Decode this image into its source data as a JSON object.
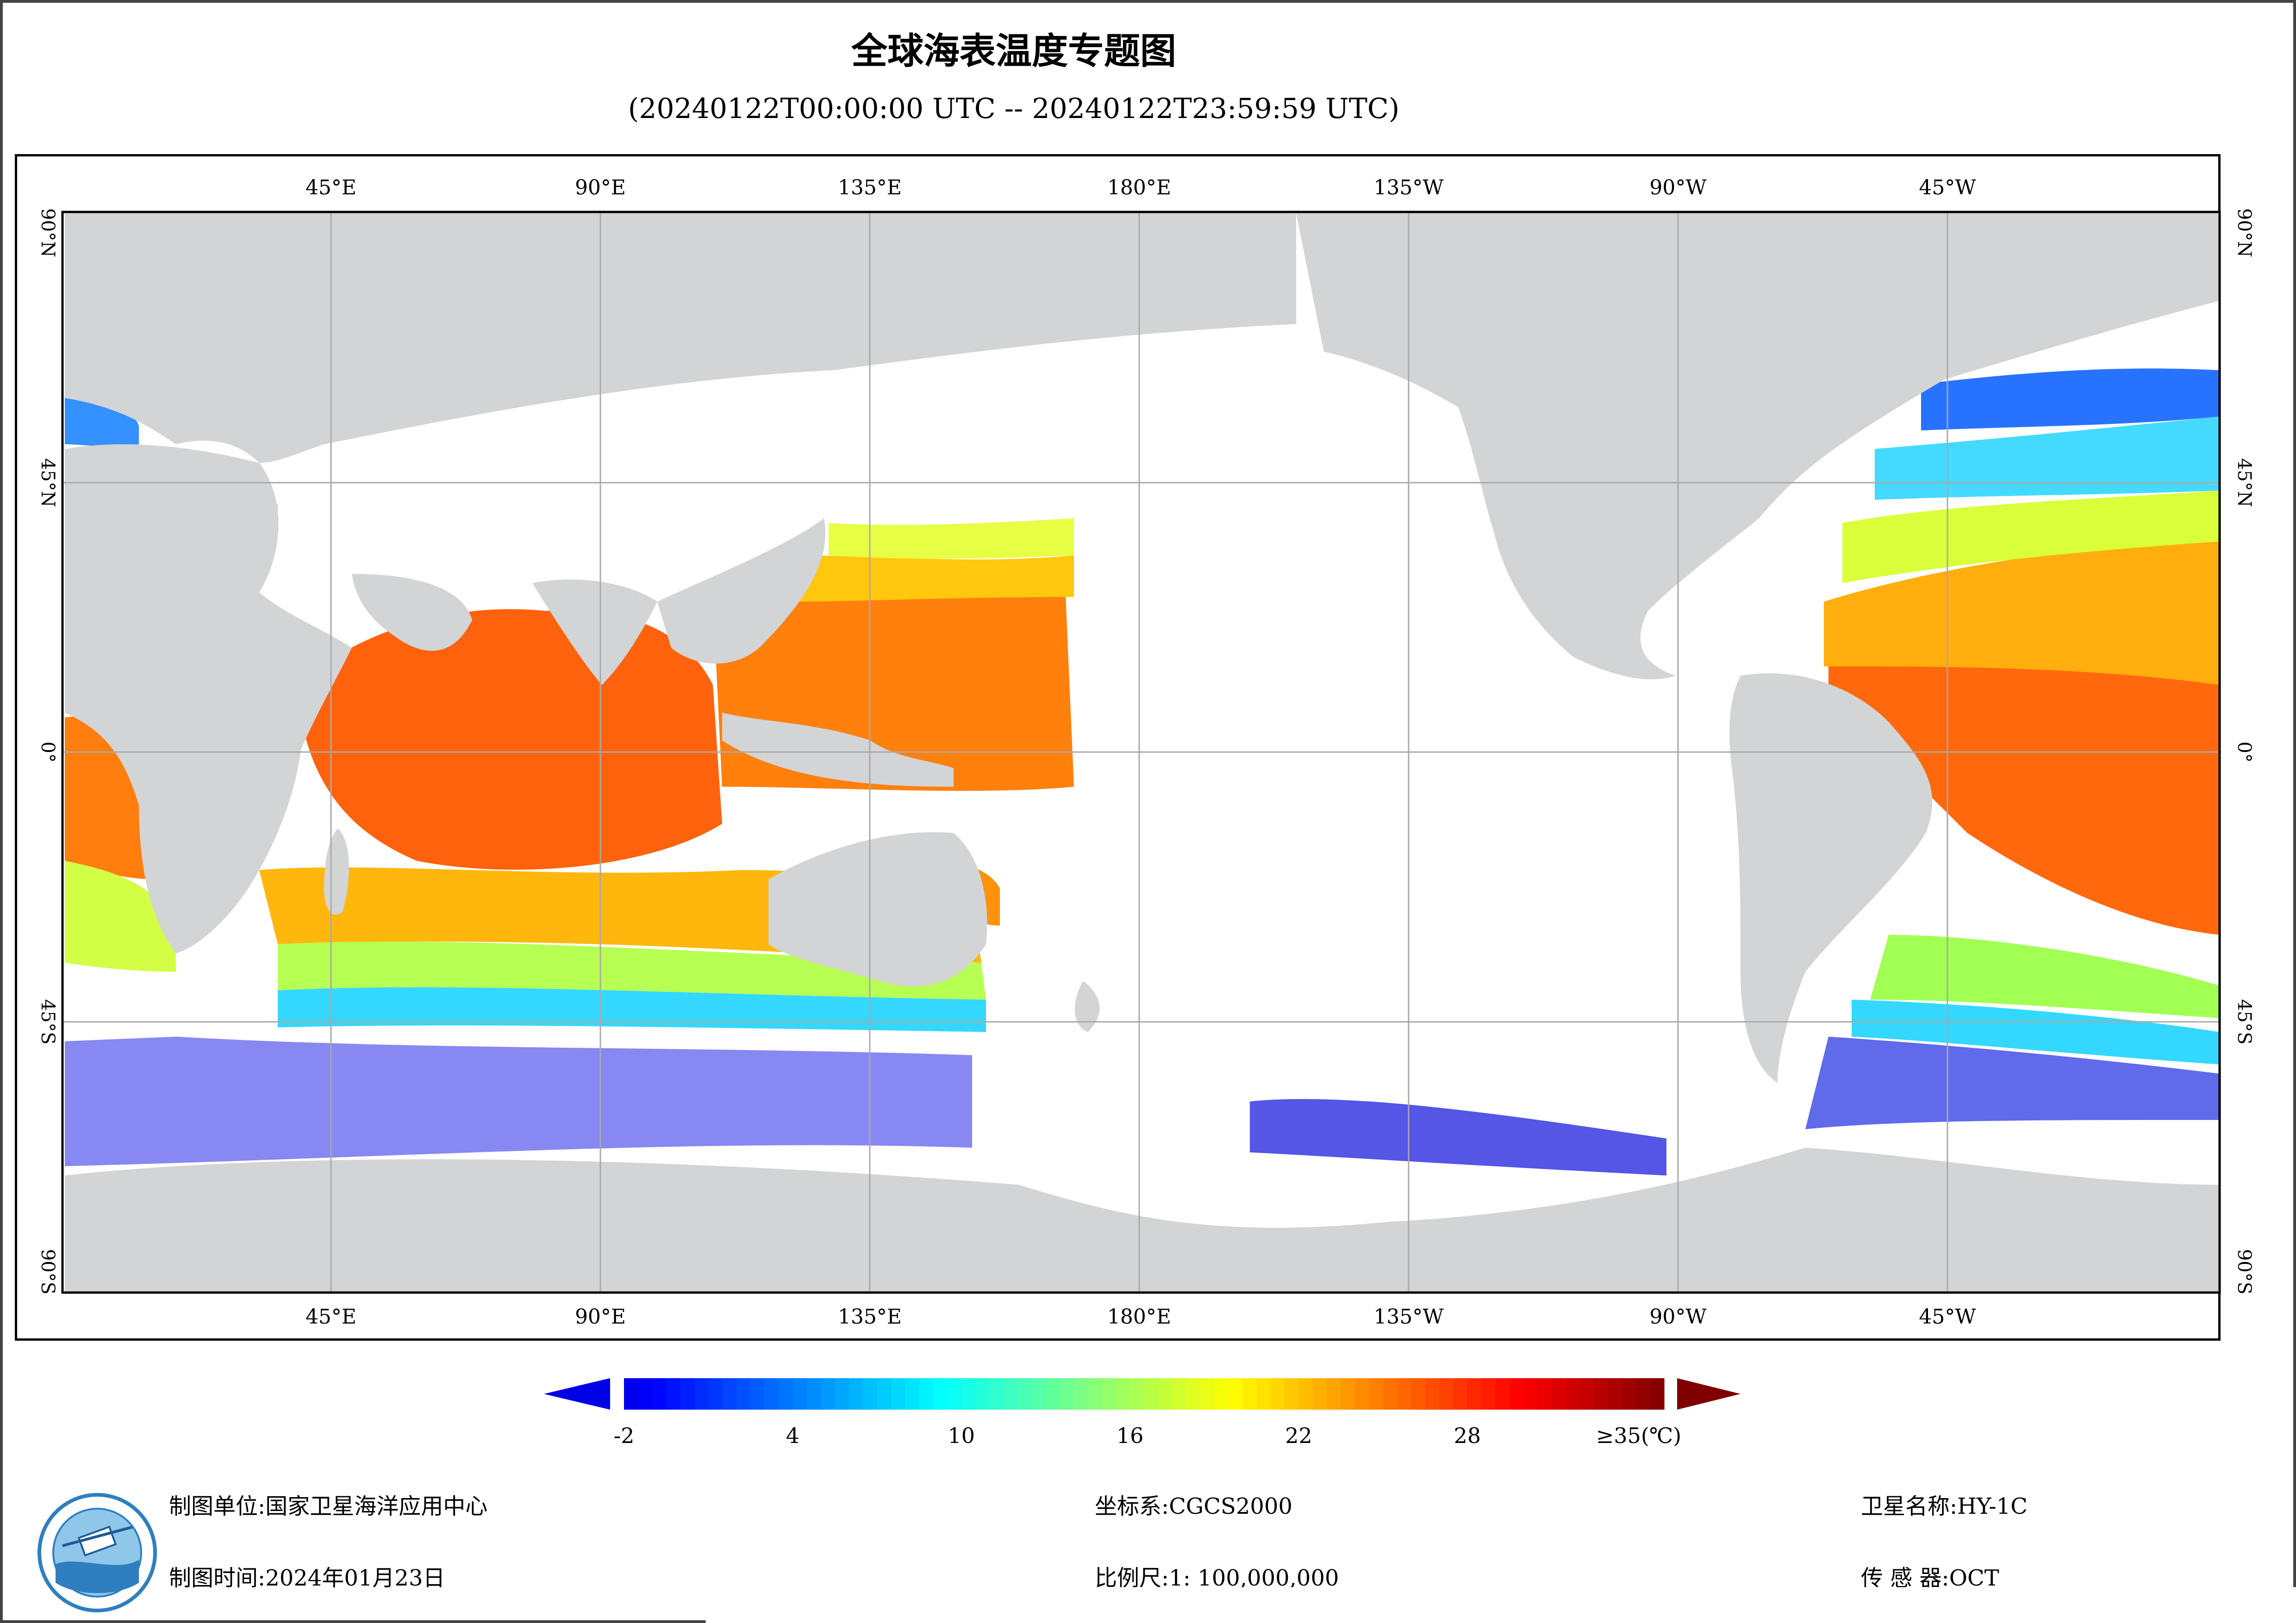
{
  "header": {
    "title": "全球海表温度专题图",
    "subtitle": "(20240122T00:00:00 UTC -- 20240122T23:59:59 UTC)"
  },
  "map": {
    "lon_labels_top": [
      "45°E",
      "90°E",
      "135°E",
      "180°E",
      "135°W",
      "90°W",
      "45°W"
    ],
    "lon_labels_bottom": [
      "45°E",
      "90°E",
      "135°E",
      "180°E",
      "135°W",
      "90°W",
      "45°W"
    ],
    "lat_labels_left": [
      "90°N",
      "45°N",
      "0°",
      "45°S",
      "90°S"
    ],
    "lat_labels_right": [
      "90°N",
      "45°N",
      "0°",
      "45°S",
      "90°S"
    ],
    "colors": {
      "land": "#d3d4d6",
      "grid": "#a9a9a9",
      "no_data": "#ffffff"
    }
  },
  "legend": {
    "tick_labels": [
      "-2",
      "4",
      "10",
      "16",
      "22",
      "28",
      "≥35(℃)"
    ],
    "tick_values": [
      -2,
      4,
      10,
      16,
      22,
      28,
      35
    ],
    "range": [
      -2,
      35
    ],
    "under_color": "#0000e6",
    "over_color": "#7f0000",
    "colormap": "jet"
  },
  "footer": {
    "org_label": "制图单位:",
    "org_value": "国家卫星海洋应用中心",
    "time_label": "制图时间:",
    "time_value": "2024年01月23日",
    "crs_label": "坐标系:",
    "crs_value": "CGCS2000",
    "scale_label": "比例尺:",
    "scale_value": "1: 100,000,000",
    "sat_label": "卫星名称:",
    "sat_value": "HY-1C",
    "sensor_label": "传 感 器:",
    "sensor_value": "OCT"
  }
}
